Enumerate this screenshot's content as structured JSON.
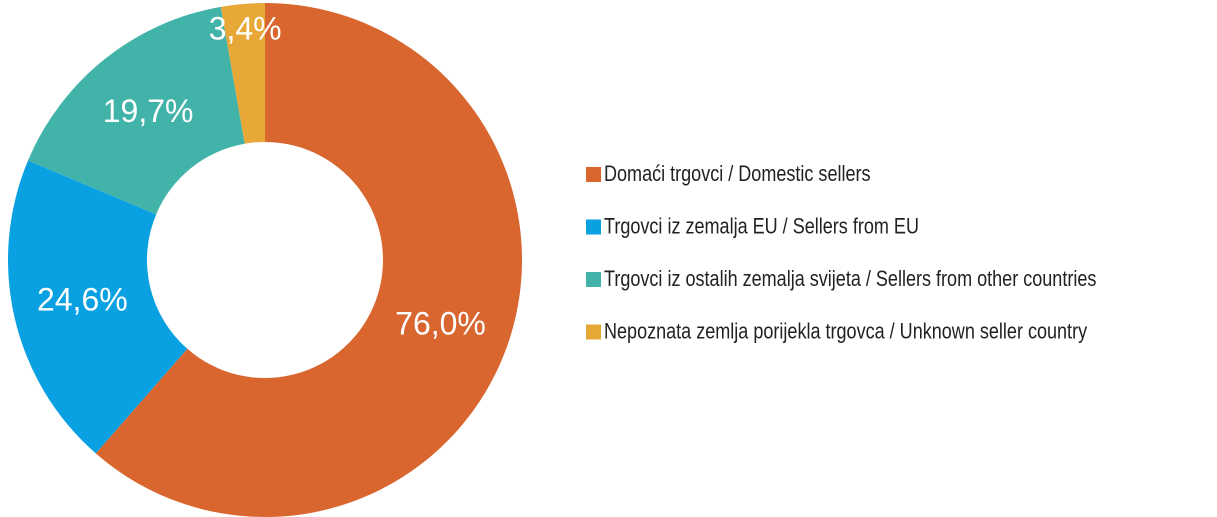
{
  "chart_data": {
    "type": "donut",
    "categories": [
      "Domaći trgovci / Domestic sellers",
      "Trgovci iz zemalja EU / Sellers from EU",
      "Trgovci iz ostalih zemalja svijeta / Sellers from other countries",
      "Nepoznata zemlja porijekla trgovca / Unknown seller country"
    ],
    "values": [
      76.0,
      24.6,
      19.7,
      3.4
    ],
    "value_labels": [
      "76,0%",
      "24,6%",
      "19,7%",
      "3,4%"
    ],
    "colors": [
      "#d9652f",
      "#0aa1e2",
      "#41b3a8",
      "#e8a838"
    ],
    "legend": "right"
  }
}
